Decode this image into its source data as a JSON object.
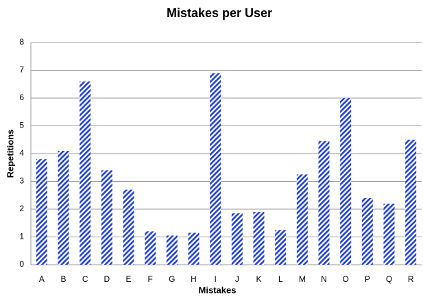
{
  "chart_data": {
    "type": "bar",
    "title": "Mistakes per User",
    "x_label": "Mistakes",
    "y_label": "Repetitions",
    "categories": [
      "A",
      "B",
      "C",
      "D",
      "E",
      "F",
      "G",
      "H",
      "I",
      "J",
      "K",
      "L",
      "M",
      "N",
      "O",
      "P",
      "Q",
      "R"
    ],
    "values": [
      3.8,
      4.1,
      6.6,
      3.4,
      2.7,
      1.2,
      1.05,
      1.15,
      6.9,
      1.85,
      1.9,
      1.25,
      3.25,
      4.45,
      6.0,
      2.4,
      2.2,
      4.5
    ],
    "color": "#1f3fd8",
    "ylim": [
      0,
      8
    ],
    "yticks": [
      0,
      1,
      2,
      3,
      4,
      5,
      6,
      7,
      8
    ],
    "grid": true
  }
}
